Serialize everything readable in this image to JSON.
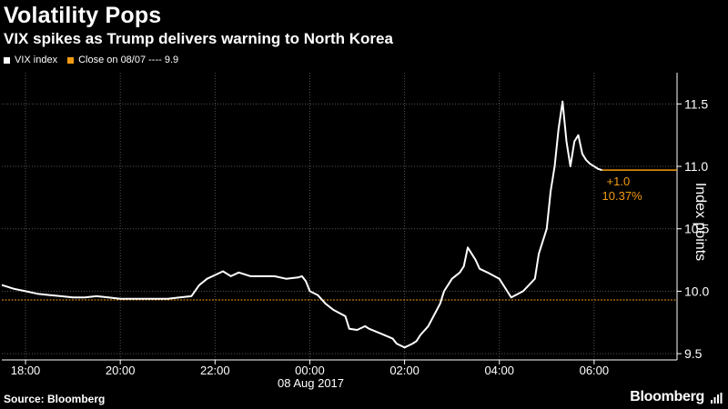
{
  "header": {
    "title": "Volatility Pops",
    "subtitle": "VIX spikes as Trump delivers warning to North Korea"
  },
  "legend": {
    "series_label": "VIX index",
    "close_label": "Close on 08/07 ---- 9.9"
  },
  "annotation": {
    "change": "+1.0",
    "pct": "10.37%"
  },
  "footer": {
    "source": "Source: Bloomberg",
    "brand": "Bloomberg",
    "brand_icon": "bloomberg-logo-icon"
  },
  "colors": {
    "background": "#000000",
    "line": "#ffffff",
    "close": "#f39c12"
  },
  "chart_data": {
    "type": "line",
    "title": "Volatility Pops",
    "subtitle": "VIX spikes as Trump delivers warning to North Korea",
    "ylabel": "Index points",
    "xlabel": "",
    "date_label": "08 Aug 2017",
    "xlim": [
      "17:30",
      "07:45"
    ],
    "ylim": [
      9.45,
      11.75
    ],
    "x_ticks": [
      "18:00",
      "20:00",
      "22:00",
      "00:00",
      "02:00",
      "04:00",
      "06:00"
    ],
    "y_ticks": [
      "9.5",
      "10.0",
      "10.5",
      "11.0",
      "11.5"
    ],
    "grid": true,
    "legend_position": "top-left",
    "close_value": 9.93,
    "series": [
      {
        "name": "VIX index",
        "x": [
          "17:30",
          "17:45",
          "18:00",
          "18:15",
          "18:30",
          "18:45",
          "19:00",
          "19:15",
          "19:30",
          "19:45",
          "20:00",
          "20:15",
          "20:30",
          "20:45",
          "21:00",
          "21:15",
          "21:30",
          "21:40",
          "21:50",
          "22:00",
          "22:10",
          "22:20",
          "22:30",
          "22:45",
          "23:00",
          "23:15",
          "23:30",
          "23:45",
          "23:50",
          "23:55",
          "00:00",
          "00:10",
          "00:20",
          "00:30",
          "00:45",
          "00:50",
          "01:00",
          "01:10",
          "01:15",
          "01:30",
          "01:45",
          "01:50",
          "02:00",
          "02:10",
          "02:15",
          "02:20",
          "02:30",
          "02:45",
          "02:50",
          "03:00",
          "03:10",
          "03:15",
          "03:20",
          "03:30",
          "03:35",
          "03:45",
          "04:00",
          "04:10",
          "04:15",
          "04:30",
          "04:45",
          "04:50",
          "05:00",
          "05:05",
          "05:10",
          "05:15",
          "05:20",
          "05:25",
          "05:30",
          "05:35",
          "05:40",
          "05:45",
          "05:50",
          "05:55",
          "06:00",
          "06:05",
          "06:10"
        ],
        "values": [
          10.05,
          10.02,
          10.0,
          9.98,
          9.97,
          9.96,
          9.95,
          9.95,
          9.96,
          9.95,
          9.94,
          9.94,
          9.94,
          9.94,
          9.94,
          9.95,
          9.96,
          10.05,
          10.1,
          10.13,
          10.16,
          10.12,
          10.15,
          10.12,
          10.12,
          10.12,
          10.1,
          10.11,
          10.12,
          10.08,
          10.0,
          9.97,
          9.9,
          9.85,
          9.8,
          9.7,
          9.69,
          9.72,
          9.7,
          9.66,
          9.62,
          9.58,
          9.55,
          9.58,
          9.6,
          9.65,
          9.72,
          9.9,
          10.0,
          10.1,
          10.15,
          10.2,
          10.35,
          10.25,
          10.18,
          10.15,
          10.1,
          10.0,
          9.95,
          10.0,
          10.1,
          10.3,
          10.5,
          10.8,
          11.0,
          11.3,
          11.52,
          11.2,
          11.0,
          11.2,
          11.25,
          11.1,
          11.05,
          11.02,
          11.0,
          10.98,
          10.97
        ]
      }
    ]
  }
}
